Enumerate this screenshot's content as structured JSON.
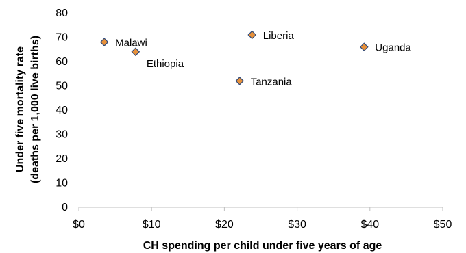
{
  "chart_data": {
    "type": "scatter",
    "title": "",
    "xlabel": "CH spending per child under five years of age",
    "ylabel_line1": "Under five mortality rate",
    "ylabel_line2": "(deaths per 1,000 live births)",
    "xlim": [
      0,
      50
    ],
    "ylim": [
      0,
      80
    ],
    "x_ticks": [
      0,
      10,
      20,
      30,
      40,
      50
    ],
    "x_tick_labels": [
      "$0",
      "$10",
      "$20",
      "$30",
      "$40",
      "$50"
    ],
    "y_ticks": [
      0,
      10,
      20,
      30,
      40,
      50,
      60,
      70,
      80
    ],
    "y_tick_labels": [
      "0",
      "10",
      "20",
      "30",
      "40",
      "50",
      "60",
      "70",
      "80"
    ],
    "grid": false,
    "legend": "none",
    "marker": "diamond",
    "marker_color": "#E8913A",
    "marker_edge_color": "#2F4A7A",
    "points": [
      {
        "label": "Malawi",
        "x": 3.5,
        "y": 68,
        "label_pos": "right"
      },
      {
        "label": "Ethiopia",
        "x": 7.8,
        "y": 64,
        "label_pos": "below-right"
      },
      {
        "label": "Liberia",
        "x": 23.8,
        "y": 71,
        "label_pos": "right"
      },
      {
        "label": "Tanzania",
        "x": 22.1,
        "y": 52,
        "label_pos": "right"
      },
      {
        "label": "Uganda",
        "x": 39.2,
        "y": 66,
        "label_pos": "right"
      }
    ]
  }
}
